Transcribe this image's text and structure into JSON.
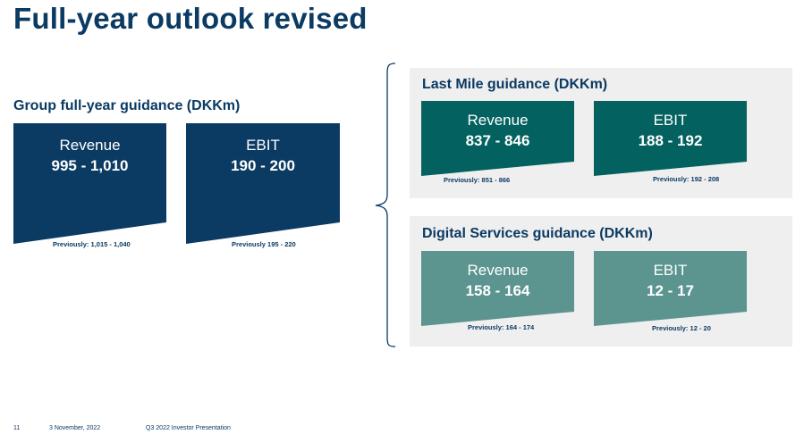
{
  "page": {
    "title": "Full-year outlook revised"
  },
  "group": {
    "heading": "Group full-year guidance (DKKm)",
    "revenue": {
      "label": "Revenue",
      "value": "995 - 1,010",
      "previously": "Previously: 1,015 - 1,040"
    },
    "ebit": {
      "label": "EBIT",
      "value": "190 - 200",
      "previously": "Previously 195 - 220"
    },
    "color": "#0b3a63"
  },
  "last_mile": {
    "heading": "Last Mile guidance (DKKm)",
    "revenue": {
      "label": "Revenue",
      "value": "837 - 846",
      "previously": "Previously: 851 - 866"
    },
    "ebit": {
      "label": "EBIT",
      "value": "188 - 192",
      "previously": "Previously: 192 - 208"
    },
    "color": "#03625f"
  },
  "digital_services": {
    "heading": "Digital Services guidance (DKKm)",
    "revenue": {
      "label": "Revenue",
      "value": "158 - 164",
      "previously": "Previously: 164 - 174"
    },
    "ebit": {
      "label": "EBIT",
      "value": "12 - 17",
      "previously": "Previously: 12 - 20"
    },
    "color": "#5c9490"
  },
  "panel_color": "#efefef",
  "footer": {
    "page_number": "11",
    "date": "3 November, 2022",
    "presentation": "Q3 2022 Investor Presentation"
  }
}
